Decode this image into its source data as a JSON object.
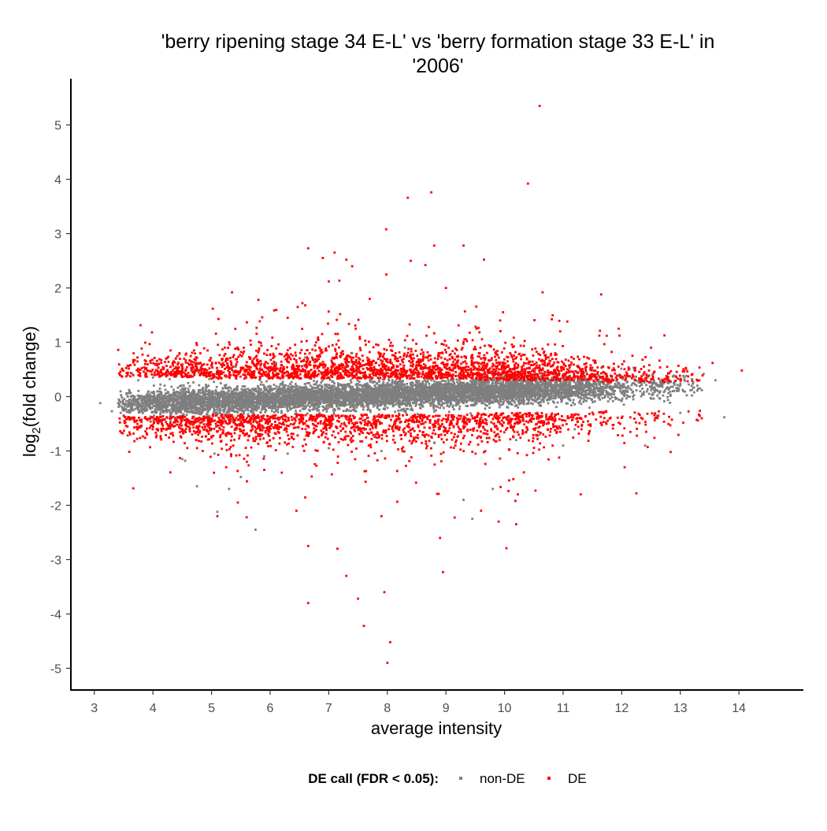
{
  "chart_data": {
    "type": "scatter",
    "title_line1": "'berry ripening stage 34 E-L' vs 'berry formation stage 33 E-L' in",
    "title_line2": "'2006'",
    "xlabel": "average intensity",
    "ylabel_prefix": "log",
    "ylabel_sub": "2",
    "ylabel_suffix": "(fold change)",
    "xlim": [
      2.6,
      15.1
    ],
    "ylim": [
      -5.4,
      5.85
    ],
    "x_ticks": [
      3,
      4,
      5,
      6,
      7,
      8,
      9,
      10,
      11,
      12,
      13,
      14
    ],
    "x_tick_labels": [
      "3",
      "4",
      "5",
      "6",
      "7",
      "8",
      "9",
      "10",
      "11",
      "12",
      "13",
      "14"
    ],
    "y_ticks": [
      -5,
      -4,
      -3,
      -2,
      -1,
      0,
      1,
      2,
      3,
      4,
      5
    ],
    "y_tick_labels": [
      "-5",
      "-4",
      "-3",
      "-2",
      "-1",
      "0",
      "1",
      "2",
      "3",
      "4",
      "5"
    ],
    "grid": false,
    "legend": {
      "position": "bottom",
      "title": "DE call (FDR < 0.05):",
      "entries": [
        "non-DE",
        "DE"
      ]
    },
    "colors": {
      "non-DE": "#7f7f7f",
      "DE": "#ff0000"
    },
    "series": [
      {
        "name": "non-DE",
        "points": [
          [
            3.1,
            -0.12
          ],
          [
            3.3,
            -0.27
          ],
          [
            3.45,
            -0.3
          ],
          [
            3.6,
            0.1
          ],
          [
            3.65,
            0.42
          ],
          [
            3.75,
            0.3
          ],
          [
            3.9,
            -0.25
          ],
          [
            4.0,
            0.35
          ],
          [
            4.2,
            0.2
          ],
          [
            4.3,
            -0.45
          ],
          [
            4.5,
            -1.15
          ],
          [
            4.55,
            -1.18
          ],
          [
            4.6,
            0.25
          ],
          [
            4.75,
            -1.65
          ],
          [
            4.8,
            0.45
          ],
          [
            5.05,
            -1.05
          ],
          [
            5.1,
            -2.12
          ],
          [
            5.3,
            -1.7
          ],
          [
            5.4,
            0.55
          ],
          [
            5.5,
            -1.48
          ],
          [
            5.75,
            -2.45
          ],
          [
            5.9,
            -1.1
          ],
          [
            6.1,
            0.62
          ],
          [
            6.3,
            -1.05
          ],
          [
            6.6,
            0.72
          ],
          [
            7.0,
            -0.95
          ],
          [
            7.4,
            0.8
          ],
          [
            7.9,
            -1.0
          ],
          [
            8.3,
            0.9
          ],
          [
            8.8,
            -0.85
          ],
          [
            9.3,
            -1.9
          ],
          [
            9.45,
            -2.25
          ],
          [
            9.8,
            -1.7
          ],
          [
            10.2,
            -0.8
          ],
          [
            10.6,
            -0.7
          ],
          [
            11.0,
            -0.9
          ],
          [
            11.2,
            -0.6
          ],
          [
            11.5,
            0.08
          ],
          [
            11.8,
            0.15
          ],
          [
            12.2,
            -0.05
          ],
          [
            12.4,
            -0.9
          ],
          [
            12.6,
            -0.35
          ],
          [
            12.8,
            0.25
          ],
          [
            13.0,
            -0.3
          ],
          [
            13.1,
            0.38
          ],
          [
            13.2,
            0.32
          ],
          [
            13.6,
            0.3
          ],
          [
            13.75,
            -0.38
          ]
        ]
      },
      {
        "name": "DE",
        "points": [
          [
            3.5,
            -0.35
          ],
          [
            3.7,
            -0.45
          ],
          [
            4.05,
            0.6
          ],
          [
            4.1,
            0.6
          ],
          [
            4.3,
            0.85
          ],
          [
            4.5,
            0.5
          ],
          [
            4.65,
            0.65
          ],
          [
            4.75,
            0.95
          ],
          [
            4.85,
            -1.0
          ],
          [
            5.0,
            -0.75
          ],
          [
            5.1,
            -2.2
          ],
          [
            5.25,
            -1.3
          ],
          [
            5.3,
            1.0
          ],
          [
            5.35,
            1.92
          ],
          [
            5.45,
            -1.95
          ],
          [
            5.55,
            0.9
          ],
          [
            5.6,
            -2.22
          ],
          [
            5.8,
            1.78
          ],
          [
            5.9,
            -1.35
          ],
          [
            6.2,
            -1.4
          ],
          [
            6.3,
            1.45
          ],
          [
            6.45,
            -2.1
          ],
          [
            6.55,
            1.72
          ],
          [
            6.6,
            1.68
          ],
          [
            6.65,
            2.73
          ],
          [
            6.65,
            -2.75
          ],
          [
            6.65,
            -3.8
          ],
          [
            6.9,
            2.55
          ],
          [
            7.0,
            2.12
          ],
          [
            7.1,
            2.65
          ],
          [
            7.15,
            -2.8
          ],
          [
            7.3,
            2.52
          ],
          [
            7.3,
            -3.3
          ],
          [
            7.4,
            2.4
          ],
          [
            7.5,
            -3.72
          ],
          [
            7.6,
            -4.22
          ],
          [
            7.7,
            1.8
          ],
          [
            7.9,
            -2.2
          ],
          [
            7.95,
            -3.6
          ],
          [
            7.98,
            3.08
          ],
          [
            8.0,
            -4.9
          ],
          [
            8.05,
            -4.52
          ],
          [
            8.35,
            3.66
          ],
          [
            8.4,
            2.5
          ],
          [
            8.65,
            2.42
          ],
          [
            8.75,
            3.76
          ],
          [
            8.8,
            2.78
          ],
          [
            8.9,
            -2.6
          ],
          [
            8.95,
            -3.23
          ],
          [
            9.0,
            2.0
          ],
          [
            9.3,
            2.78
          ],
          [
            9.6,
            -2.1
          ],
          [
            9.65,
            2.52
          ],
          [
            9.9,
            -2.3
          ],
          [
            10.2,
            -2.35
          ],
          [
            10.4,
            3.92
          ],
          [
            10.6,
            5.35
          ],
          [
            10.65,
            1.92
          ],
          [
            10.95,
            1.2
          ],
          [
            11.3,
            -1.8
          ],
          [
            11.65,
            1.88
          ],
          [
            11.95,
            1.25
          ],
          [
            12.05,
            -1.3
          ],
          [
            12.25,
            -1.78
          ],
          [
            12.5,
            0.9
          ],
          [
            12.55,
            0.45
          ],
          [
            12.7,
            0.28
          ],
          [
            13.55,
            0.62
          ],
          [
            14.05,
            0.48
          ]
        ]
      }
    ]
  }
}
